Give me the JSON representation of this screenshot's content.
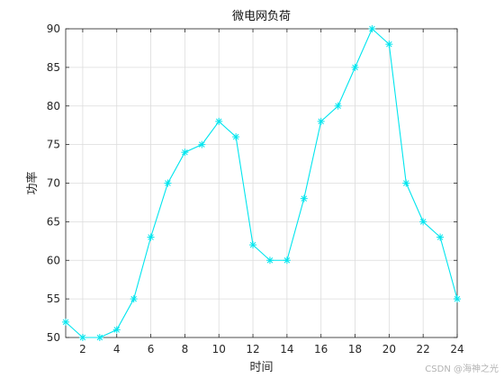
{
  "chart_data": {
    "type": "line",
    "title": "微电网负荷",
    "xlabel": "时间",
    "ylabel": "功率",
    "xlim": [
      1,
      24
    ],
    "ylim": [
      50,
      90
    ],
    "xticks": [
      2,
      4,
      6,
      8,
      10,
      12,
      14,
      16,
      18,
      20,
      22,
      24
    ],
    "yticks": [
      50,
      55,
      60,
      65,
      70,
      75,
      80,
      85,
      90
    ],
    "grid": true,
    "marker": "*",
    "series": [
      {
        "color": "#00e5ee",
        "x": [
          1,
          2,
          3,
          4,
          5,
          6,
          7,
          8,
          9,
          10,
          11,
          12,
          13,
          14,
          15,
          16,
          17,
          18,
          19,
          20,
          21,
          22,
          23,
          24
        ],
        "y": [
          52,
          50,
          50,
          51,
          55,
          63,
          70,
          74,
          75,
          78,
          76,
          62,
          60,
          60,
          68,
          78,
          80,
          85,
          90,
          88,
          70,
          65,
          63,
          55
        ]
      }
    ]
  },
  "watermark": "CSDN @海神之光"
}
